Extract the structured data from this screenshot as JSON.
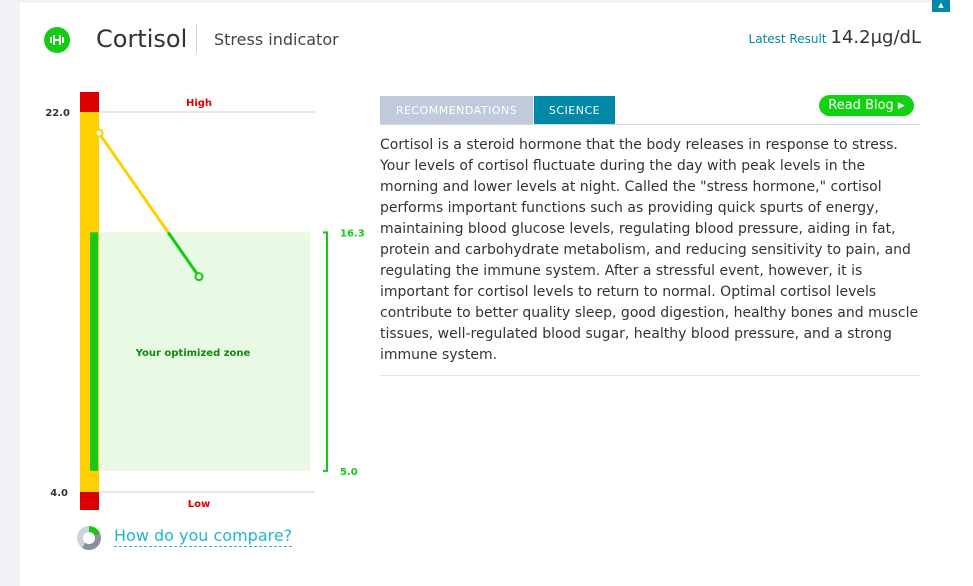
{
  "header": {
    "title": "Cortisol",
    "subtitle": "Stress indicator",
    "icon": "dumbbell-icon",
    "latest_label": "Latest Result",
    "latest_value": "14.2µg/dL"
  },
  "tabs": [
    {
      "label": "RECOMMENDATIONS",
      "active": false
    },
    {
      "label": "SCIENCE",
      "active": true
    }
  ],
  "read_blog": "Read Blog",
  "science_text": "Cortisol is a steroid hormone that the body releases in response to stress. Your levels of cortisol fluctuate during the day with peak levels in the morning and lower levels at night. Called the \"stress hormone,\" cortisol performs important functions such as providing quick spurts of energy, maintaining blood glucose levels, regulating blood pressure, aiding in fat, protein and carbohydrate metabolism, and reducing sensitivity to pain, and regulating the immune system. After a stressful event, however, it is important for cortisol levels to return to normal. Optimal cortisol levels contribute to better quality sleep, good digestion, healthy bones and muscle tissues, well-regulated blood sugar, healthy blood pressure, and a strong immune system.",
  "compare_link": "How do you compare?",
  "chart_data": {
    "type": "line",
    "ylim": [
      4.0,
      22.0
    ],
    "y_ticks": [
      "22.0",
      "4.0"
    ],
    "high_label": "High",
    "low_label": "Low",
    "zone": {
      "label": "Your optimized zone",
      "min": 5.0,
      "max": 16.3,
      "min_label": "5.0",
      "max_label": "16.3"
    },
    "values": [
      21.0,
      14.2
    ],
    "colors": {
      "high": "#dd0000",
      "normal": "#ffd000",
      "optimal": "#15c915",
      "zone_fill": "#e8fae4"
    }
  }
}
